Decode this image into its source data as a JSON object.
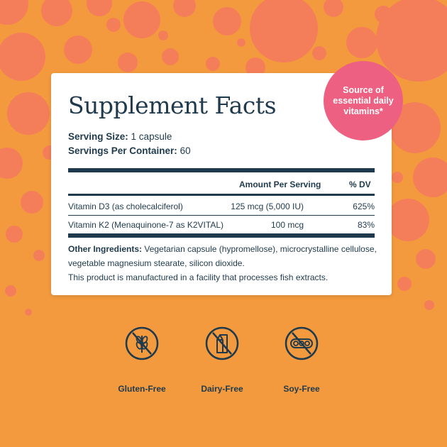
{
  "panel": {
    "title": "Supplement Facts",
    "serving_size_label": "Serving Size:",
    "serving_size_value": "1 capsule",
    "servings_label": "Servings Per Container:",
    "servings_value": "60",
    "col_amount": "Amount Per Serving",
    "col_dv": "% DV",
    "rows": [
      {
        "name": "Vitamin D3 (as cholecalciferol)",
        "amount": "125 mcg (5,000 IU)",
        "dv": "625%"
      },
      {
        "name": "Vitamin K2 (Menaquinone-7 as K2VITAL)",
        "amount": "100 mcg",
        "dv": "83%"
      }
    ],
    "other_label": "Other Ingredients:",
    "other_text": "Vegetarian capsule (hypromellose), microcrystalline cellulose, vegetable magnesium stearate, silicon dioxide.",
    "facility_note": "This product is manufactured in a facility that processes fish extracts."
  },
  "badge": {
    "text": "Source of essential daily vitamins*",
    "color": "#ee6081"
  },
  "features": [
    {
      "icon": "wheat-crossed-icon",
      "label": "Gluten-Free"
    },
    {
      "icon": "milk-carton-crossed-icon",
      "label": "Dairy-Free"
    },
    {
      "icon": "soybean-crossed-icon",
      "label": "Soy-Free"
    }
  ],
  "colors": {
    "background": "#f39a3e",
    "bubbles": "#f47a5e",
    "text": "#1f3a4d"
  }
}
